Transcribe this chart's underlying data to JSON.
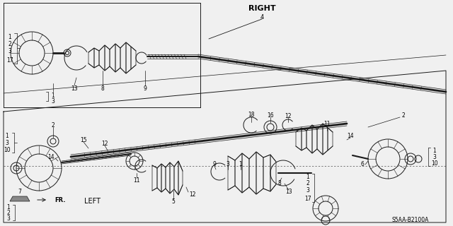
{
  "bg_color": "#f0f0f0",
  "line_color": "#1a1a1a",
  "text_color": "#000000",
  "right_label": "RIGHT",
  "right_num": "4",
  "left_label": "LEFT",
  "fr_label": "FR.",
  "part_code": "S5AA-B2100A",
  "figsize": [
    6.4,
    3.2
  ],
  "dpi": 100
}
